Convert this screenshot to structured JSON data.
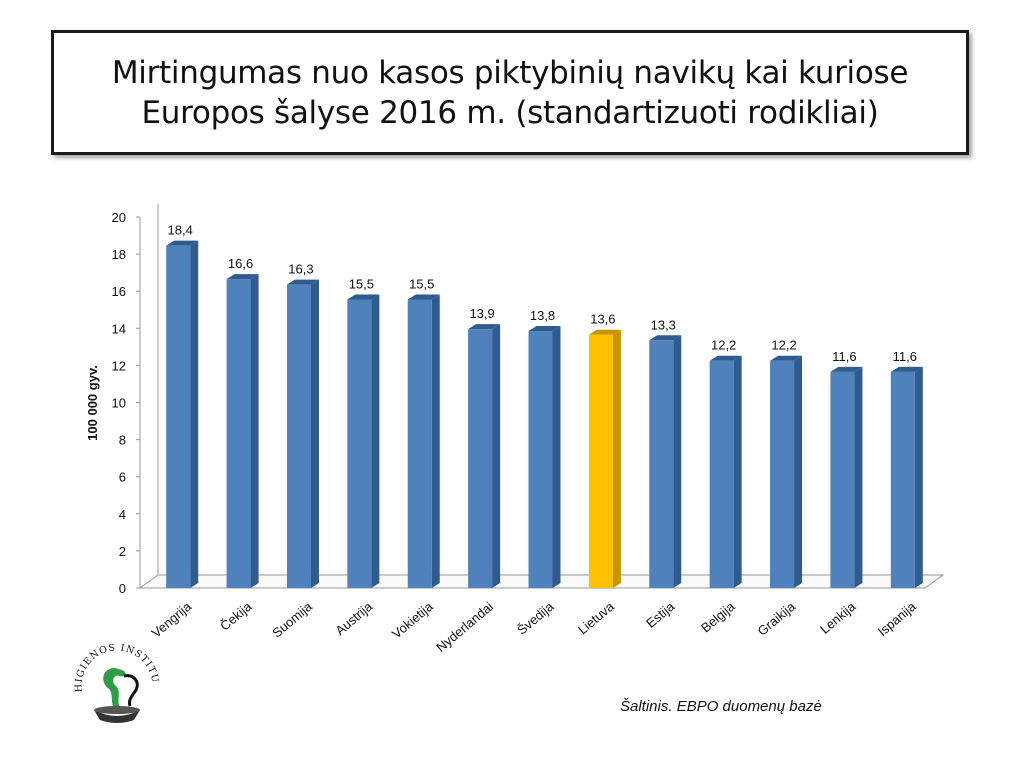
{
  "title": {
    "line1": "Mirtingumas nuo kasos piktybinių navikų kai kuriose",
    "line2": "Europos šalyse 2016 m. (standartizuoti rodikliai)"
  },
  "source": "Šaltinis. EBPO duomenų bazė",
  "logo": {
    "text": "HIGIENOS INSTITUTAS",
    "icon": "institute-logo-icon"
  },
  "colors": {
    "bar": "#4f81bd",
    "bar_dark": "#2f5b8f",
    "highlight": "#ffc000",
    "highlight_dark": "#c99400"
  },
  "chart_data": {
    "type": "bar",
    "categories": [
      "Vengrija",
      "Čekija",
      "Suomija",
      "Austrija",
      "Vokietija",
      "Nyderlandai",
      "Švedija",
      "Lietuva",
      "Estija",
      "Belgija",
      "Graikija",
      "Lenkija",
      "Ispanija"
    ],
    "values": [
      18.4,
      16.6,
      16.3,
      15.5,
      15.5,
      13.9,
      13.8,
      13.6,
      13.3,
      12.2,
      12.2,
      11.6,
      11.6
    ],
    "value_labels": [
      "18,4",
      "16,6",
      "16,3",
      "15,5",
      "15,5",
      "13,9",
      "13,8",
      "13,6",
      "13,3",
      "12,2",
      "12,2",
      "11,6",
      "11,6"
    ],
    "highlight_category": "Lietuva",
    "title": "Mirtingumas nuo kasos piktybinių navikų kai kuriose Europos šalyse 2016 m. (standartizuoti rodikliai)",
    "xlabel": "",
    "ylabel": "100 000 gyv.",
    "ylim": [
      0,
      20
    ],
    "yticks": [
      0,
      2,
      4,
      6,
      8,
      10,
      12,
      14,
      16,
      18,
      20
    ],
    "grid": false,
    "legend": "none"
  }
}
